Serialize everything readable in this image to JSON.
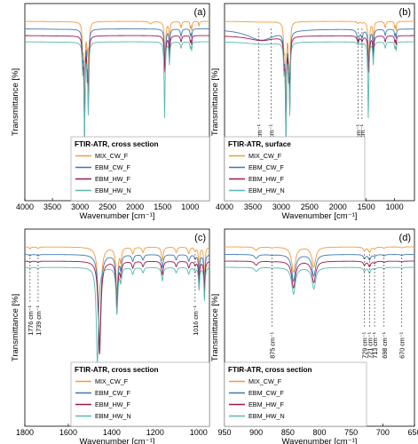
{
  "figure": {
    "legend_items": [
      "MIX_CW_F",
      "EBM_CW_F",
      "EBM_HW_F",
      "EBM_HW_N"
    ],
    "colors": {
      "MIX_CW_F": "#f5993a",
      "EBM_CW_F": "#3f78b5",
      "EBM_HW_F": "#9c1a4c",
      "EBM_HW_N": "#58b8b0"
    }
  },
  "chart_data": [
    {
      "type": "line",
      "panel_label": "(a)",
      "legend_title": "FTIR-ATR, cross section",
      "xlabel": "Wavenumber [cm⁻¹]",
      "ylabel": "Transmittance [%]",
      "xlim": [
        4000,
        650
      ],
      "x_reversed": true,
      "ticks": [
        "4000",
        "3500",
        "3000",
        "2500",
        "2000",
        "1500",
        "1000"
      ],
      "annotations": [],
      "series": [
        {
          "name": "MIX_CW_F",
          "offset": 0.0,
          "peaks": [
            [
              3350,
              0.003,
              300
            ],
            [
              2950,
              0.2,
              12
            ],
            [
              2917,
              0.78,
              10
            ],
            [
              2870,
              0.22,
              10
            ],
            [
              2838,
              0.55,
              9
            ],
            [
              1720,
              0.02,
              30
            ],
            [
              1456,
              0.3,
              14
            ],
            [
              1376,
              0.18,
              10
            ],
            [
              1165,
              0.05,
              14
            ],
            [
              997,
              0.05,
              8
            ],
            [
              973,
              0.07,
              8
            ],
            [
              840,
              0.04,
              8
            ]
          ]
        },
        {
          "name": "EBM_CW_F",
          "offset": 0.085,
          "peaks": [
            [
              3350,
              0.003,
              300
            ],
            [
              2950,
              0.2,
              12
            ],
            [
              2917,
              0.78,
              10
            ],
            [
              2870,
              0.22,
              10
            ],
            [
              2848,
              0.55,
              9
            ],
            [
              1455,
              0.3,
              14
            ],
            [
              1376,
              0.16,
              10
            ],
            [
              1165,
              0.06,
              14
            ],
            [
              997,
              0.05,
              8
            ],
            [
              973,
              0.07,
              8
            ]
          ]
        },
        {
          "name": "EBM_HW_F",
          "offset": 0.16,
          "peaks": [
            [
              3350,
              0.003,
              300
            ],
            [
              2950,
              0.2,
              12
            ],
            [
              2917,
              0.78,
              10
            ],
            [
              2870,
              0.22,
              10
            ],
            [
              2848,
              0.55,
              9
            ],
            [
              1456,
              0.3,
              14
            ],
            [
              1376,
              0.18,
              10
            ],
            [
              1165,
              0.05,
              14
            ],
            [
              997,
              0.05,
              8
            ],
            [
              973,
              0.07,
              8
            ]
          ]
        },
        {
          "name": "EBM_HW_N",
          "offset": 0.23,
          "peaks": [
            [
              3350,
              0.003,
              300
            ],
            [
              2950,
              0.2,
              12
            ],
            [
              2917,
              0.78,
              10
            ],
            [
              2870,
              0.22,
              10
            ],
            [
              2848,
              0.55,
              9
            ],
            [
              1464,
              0.62,
              10
            ],
            [
              1376,
              0.18,
              10
            ],
            [
              1165,
              0.05,
              14
            ],
            [
              997,
              0.05,
              8
            ],
            [
              973,
              0.07,
              8
            ]
          ]
        }
      ]
    },
    {
      "type": "line",
      "panel_label": "(b)",
      "legend_title": "FTIR-ATR, surface",
      "xlabel": "Wavenumber [cm⁻¹]",
      "ylabel": "Transmittance [%]",
      "xlim": [
        4000,
        650
      ],
      "x_reversed": true,
      "ticks": [
        "4000",
        "3500",
        "3000",
        "2500",
        "2000",
        "1500",
        "1000"
      ],
      "annotations": [
        {
          "x": 3393,
          "label": "3393 cm⁻¹"
        },
        {
          "x": 3180,
          "label": "3180 cm⁻¹"
        },
        {
          "x": 1644,
          "label": "1644 cm⁻¹"
        },
        {
          "x": 1575,
          "label": "1575 cm⁻¹"
        }
      ],
      "series": [
        {
          "name": "MIX_CW_F",
          "offset": 0.0,
          "peaks": [
            [
              3350,
              0.006,
              260
            ],
            [
              2950,
              0.2,
              12
            ],
            [
              2917,
              0.78,
              10
            ],
            [
              2870,
              0.22,
              10
            ],
            [
              2848,
              0.55,
              9
            ],
            [
              1644,
              0.015,
              20
            ],
            [
              1575,
              0.01,
              18
            ],
            [
              1456,
              0.3,
              14
            ],
            [
              1376,
              0.18,
              10
            ],
            [
              1165,
              0.05,
              14
            ],
            [
              997,
              0.05,
              8
            ],
            [
              973,
              0.07,
              8
            ]
          ]
        },
        {
          "name": "EBM_CW_F",
          "offset": 0.085,
          "peaks": [
            [
              3350,
              0.09,
              300
            ],
            [
              2950,
              0.2,
              12
            ],
            [
              2917,
              0.78,
              10
            ],
            [
              2870,
              0.22,
              10
            ],
            [
              2848,
              0.55,
              9
            ],
            [
              1644,
              0.1,
              22
            ],
            [
              1575,
              0.06,
              18
            ],
            [
              1456,
              0.3,
              14
            ],
            [
              1376,
              0.18,
              10
            ],
            [
              1165,
              0.05,
              14
            ],
            [
              997,
              0.05,
              8
            ],
            [
              973,
              0.07,
              8
            ]
          ]
        },
        {
          "name": "EBM_HW_F",
          "offset": 0.16,
          "peaks": [
            [
              3350,
              0.04,
              280
            ],
            [
              2950,
              0.2,
              12
            ],
            [
              2917,
              0.78,
              10
            ],
            [
              2870,
              0.22,
              10
            ],
            [
              2848,
              0.55,
              9
            ],
            [
              1644,
              0.05,
              22
            ],
            [
              1575,
              0.04,
              18
            ],
            [
              1456,
              0.3,
              14
            ],
            [
              1376,
              0.18,
              10
            ],
            [
              1165,
              0.05,
              14
            ],
            [
              997,
              0.05,
              8
            ],
            [
              973,
              0.07,
              8
            ]
          ]
        },
        {
          "name": "EBM_HW_N",
          "offset": 0.23,
          "peaks": [
            [
              3350,
              0.02,
              280
            ],
            [
              2950,
              0.2,
              12
            ],
            [
              2917,
              0.78,
              10
            ],
            [
              2870,
              0.22,
              10
            ],
            [
              2848,
              0.55,
              9
            ],
            [
              1644,
              0.02,
              22
            ],
            [
              1575,
              0.02,
              18
            ],
            [
              1464,
              0.62,
              10
            ],
            [
              1376,
              0.18,
              10
            ],
            [
              1165,
              0.05,
              14
            ],
            [
              997,
              0.05,
              8
            ],
            [
              973,
              0.07,
              8
            ]
          ]
        }
      ]
    },
    {
      "type": "line",
      "panel_label": "(c)",
      "legend_title": "FTIR-ATR, cross section",
      "xlabel": "Wavenumber [cm⁻¹]",
      "ylabel": "Transmittance [%]",
      "xlim": [
        1800,
        950
      ],
      "x_reversed": true,
      "ticks": [
        "1800",
        "1600",
        "1400",
        "1200",
        "1000"
      ],
      "annotations": [
        {
          "x": 1776,
          "label": "1776 cm⁻¹"
        },
        {
          "x": 1739,
          "label": "1739 cm⁻¹"
        },
        {
          "x": 1016,
          "label": "1016 cm⁻¹"
        }
      ],
      "series": [
        {
          "name": "MIX_CW_F",
          "offset": 0.0,
          "peaks": [
            [
              1776,
              0.015,
              4
            ],
            [
              1739,
              0.012,
              5
            ],
            [
              1456,
              0.7,
              7
            ],
            [
              1376,
              0.35,
              5
            ],
            [
              1358,
              0.1,
              4
            ],
            [
              1303,
              0.05,
              5
            ],
            [
              1256,
              0.04,
              5
            ],
            [
              1167,
              0.1,
              5
            ],
            [
              1103,
              0.04,
              5
            ],
            [
              1045,
              0.05,
              5
            ],
            [
              1016,
              0.03,
              4
            ],
            [
              998,
              0.17,
              3
            ],
            [
              973,
              0.25,
              3
            ]
          ]
        },
        {
          "name": "EBM_CW_F",
          "offset": 0.085,
          "peaks": [
            [
              1776,
              0.01,
              4
            ],
            [
              1739,
              0.01,
              5
            ],
            [
              1456,
              0.7,
              7
            ],
            [
              1376,
              0.35,
              5
            ],
            [
              1358,
              0.1,
              4
            ],
            [
              1303,
              0.05,
              5
            ],
            [
              1256,
              0.04,
              5
            ],
            [
              1167,
              0.1,
              5
            ],
            [
              1103,
              0.04,
              5
            ],
            [
              1045,
              0.05,
              5
            ],
            [
              1016,
              0.03,
              4
            ],
            [
              998,
              0.17,
              3
            ],
            [
              973,
              0.25,
              3
            ]
          ]
        },
        {
          "name": "EBM_HW_F",
          "offset": 0.16,
          "peaks": [
            [
              1776,
              0.01,
              4
            ],
            [
              1739,
              0.01,
              5
            ],
            [
              1456,
              0.7,
              7
            ],
            [
              1376,
              0.35,
              5
            ],
            [
              1358,
              0.1,
              4
            ],
            [
              1303,
              0.05,
              5
            ],
            [
              1256,
              0.04,
              5
            ],
            [
              1167,
              0.1,
              5
            ],
            [
              1103,
              0.04,
              5
            ],
            [
              1045,
              0.05,
              5
            ],
            [
              1016,
              0.03,
              4
            ],
            [
              998,
              0.17,
              3
            ],
            [
              973,
              0.25,
              3
            ]
          ]
        },
        {
          "name": "EBM_HW_N",
          "offset": 0.23,
          "peaks": [
            [
              1776,
              0.01,
              4
            ],
            [
              1739,
              0.01,
              5
            ],
            [
              1466,
              0.72,
              6
            ],
            [
              1376,
              0.35,
              5
            ],
            [
              1358,
              0.1,
              4
            ],
            [
              1303,
              0.05,
              5
            ],
            [
              1256,
              0.04,
              5
            ],
            [
              1167,
              0.1,
              5
            ],
            [
              1103,
              0.04,
              5
            ],
            [
              1045,
              0.05,
              5
            ],
            [
              1016,
              0.03,
              4
            ],
            [
              998,
              0.17,
              3
            ],
            [
              973,
              0.25,
              3
            ]
          ]
        }
      ]
    },
    {
      "type": "line",
      "panel_label": "(d)",
      "legend_title": "FTIR-ATR, cross section",
      "xlabel": "Wavenumber [cm⁻¹]",
      "ylabel": "Transmittance [%]",
      "xlim": [
        950,
        650
      ],
      "x_reversed": true,
      "ticks": [
        "950",
        "900",
        "850",
        "800",
        "750",
        "700",
        "650"
      ],
      "annotations": [
        {
          "x": 875,
          "label": "875 cm⁻¹"
        },
        {
          "x": 729,
          "label": "729 cm⁻¹"
        },
        {
          "x": 721,
          "label": "721 cm⁻¹"
        },
        {
          "x": 713,
          "label": "713 cm⁻¹"
        },
        {
          "x": 698,
          "label": "698 cm⁻¹"
        },
        {
          "x": 670,
          "label": "670 cm⁻¹"
        }
      ],
      "series": [
        {
          "name": "MIX_CW_F",
          "offset": 0.0,
          "peaks": [
            [
              900,
              0.05,
              3
            ],
            [
              875,
              0.01,
              3
            ],
            [
              841,
              0.38,
              3.5
            ],
            [
              809,
              0.3,
              3.5
            ],
            [
              729,
              0.06,
              2
            ],
            [
              721,
              0.08,
              2
            ],
            [
              713,
              0.03,
              2
            ],
            [
              698,
              0.02,
              2
            ],
            [
              670,
              0.015,
              2
            ]
          ]
        },
        {
          "name": "EBM_CW_F",
          "offset": 0.085,
          "peaks": [
            [
              900,
              0.06,
              3
            ],
            [
              875,
              0.01,
              3
            ],
            [
              841,
              0.4,
              3.5
            ],
            [
              809,
              0.32,
              3.5
            ],
            [
              729,
              0.06,
              2
            ],
            [
              721,
              0.08,
              2
            ],
            [
              713,
              0.03,
              2
            ],
            [
              698,
              0.02,
              2
            ],
            [
              670,
              0.015,
              2
            ]
          ]
        },
        {
          "name": "EBM_HW_F",
          "offset": 0.16,
          "peaks": [
            [
              900,
              0.06,
              3
            ],
            [
              875,
              0.01,
              3
            ],
            [
              841,
              0.4,
              3.5
            ],
            [
              809,
              0.32,
              3.5
            ],
            [
              729,
              0.06,
              2
            ],
            [
              721,
              0.08,
              2
            ],
            [
              713,
              0.03,
              2
            ],
            [
              698,
              0.02,
              2
            ],
            [
              670,
              0.015,
              2
            ]
          ]
        },
        {
          "name": "EBM_HW_N",
          "offset": 0.23,
          "peaks": [
            [
              900,
              0.06,
              3
            ],
            [
              875,
              0.01,
              3
            ],
            [
              841,
              0.4,
              3.5
            ],
            [
              809,
              0.32,
              3.5
            ],
            [
              729,
              0.06,
              2
            ],
            [
              721,
              0.08,
              2
            ],
            [
              713,
              0.03,
              2
            ],
            [
              698,
              0.02,
              2
            ],
            [
              670,
              0.015,
              2
            ]
          ]
        }
      ]
    }
  ]
}
